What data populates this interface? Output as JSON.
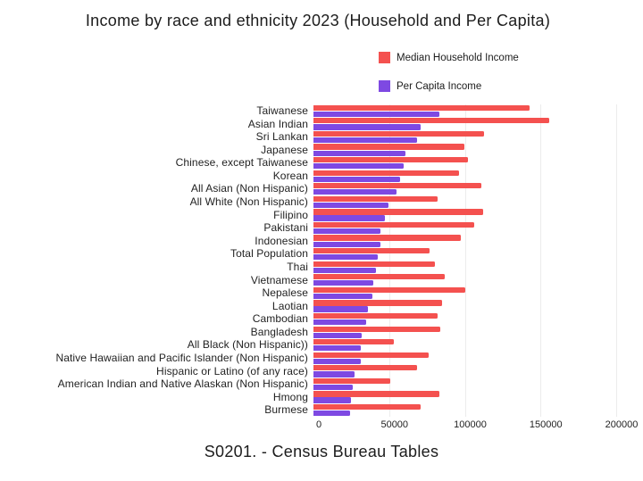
{
  "title": "Income by race and ethnicity 2023 (Household and Per Capita)",
  "caption": "S0201. - Census Bureau Tables",
  "legend": [
    {
      "label": "Median Household Income",
      "color": "#f4514f"
    },
    {
      "label": "Per Capita Income",
      "color": "#7e49e2"
    }
  ],
  "chart_data": {
    "type": "bar",
    "orientation": "horizontal",
    "title": "Income by race and ethnicity 2023 (Household and Per Capita)",
    "xlabel": "",
    "ylabel": "",
    "xlim": [
      0,
      200000
    ],
    "x_ticks": [
      0,
      50000,
      100000,
      150000,
      200000
    ],
    "x_tick_labels": [
      "0",
      "50000",
      "100000",
      "150000",
      "200000"
    ],
    "grid": true,
    "legend_position": "top-right",
    "categories": [
      "Taiwanese",
      "Asian Indian",
      "Sri Lankan",
      "Japanese",
      "Chinese, except Taiwanese",
      "Korean",
      "All Asian (Non Hispanic)",
      "All White (Non Hispanic)",
      "Filipino",
      "Pakistani",
      "Indonesian",
      "Total Population",
      "Thai",
      "Vietnamese",
      "Nepalese",
      "Laotian",
      "Cambodian",
      "Bangladesh",
      "All Black (Non Hispanic))",
      "Native Hawaiian and Pacific Islander (Non Hispanic)",
      "Hispanic or Latino (of any race)",
      "American Indian and Native Alaskan (Non Hispanic)",
      "Hmong",
      "Burmese"
    ],
    "series": [
      {
        "name": "Median Household Income",
        "color": "#f4514f",
        "values": [
          142500,
          155500,
          112500,
          99500,
          102000,
          96000,
          111000,
          82000,
          112000,
          106000,
          97500,
          76500,
          80000,
          87000,
          100500,
          85000,
          82000,
          83500,
          53000,
          76000,
          68500,
          50500,
          83000,
          71000
        ]
      },
      {
        "name": "Per Capita Income",
        "color": "#7e49e2",
        "values": [
          83000,
          71000,
          68500,
          61000,
          59500,
          57500,
          55000,
          49500,
          47000,
          44500,
          44000,
          42500,
          41500,
          39500,
          39000,
          36000,
          35000,
          32000,
          31500,
          31000,
          27000,
          26000,
          25000,
          24000
        ]
      }
    ]
  }
}
